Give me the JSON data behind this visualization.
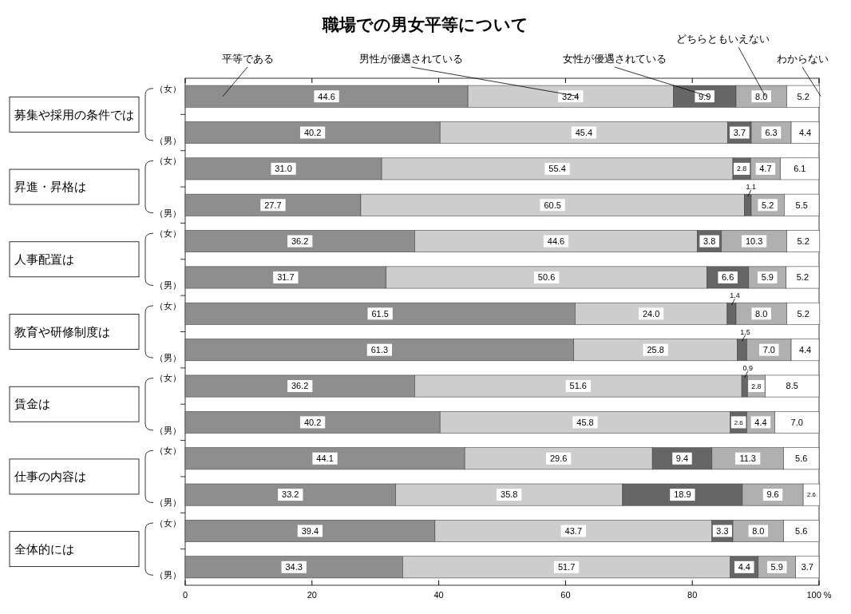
{
  "chart_data": {
    "type": "bar",
    "orientation": "horizontal",
    "stacked": true,
    "title": "職場での男女平等について",
    "categories": [
      "（女）",
      "（男）",
      "（女）",
      "（男）",
      "（女）",
      "（男）",
      "（女）",
      "（男）",
      "（女）",
      "（男）",
      "（女）",
      "（男）",
      "（女）",
      "（男）"
    ],
    "annotations": [
      "募集や採用の条件では",
      "昇進・昇格は",
      "人事配置は",
      "教育や研修制度は",
      "賃金は",
      "仕事の内容は",
      "全体的には"
    ],
    "series": [
      {
        "name": "平等である",
        "color": "#8e8e8e",
        "values": [
          44.6,
          40.2,
          31.0,
          27.7,
          36.2,
          31.7,
          61.5,
          61.3,
          36.2,
          40.2,
          44.1,
          33.2,
          39.4,
          34.3
        ],
        "value_labels": [
          "44.6",
          "40.2",
          "31.0",
          "27.7",
          "36.2",
          "31.7",
          "61.5",
          "61.3",
          "36.2",
          "40.2",
          "44.1",
          "33.2",
          "39.4",
          "34.3"
        ]
      },
      {
        "name": "男性が優遇されている",
        "color": "#cdcdcd",
        "values": [
          32.4,
          45.4,
          55.4,
          60.5,
          44.6,
          50.6,
          24.0,
          25.8,
          51.6,
          45.8,
          29.6,
          35.8,
          43.7,
          51.7
        ],
        "value_labels": [
          "32.4",
          "45.4",
          "55.4",
          "60.5",
          "44.6",
          "50.6",
          "24.0",
          "25.8",
          "51.6",
          "45.8",
          "29.6",
          "35.8",
          "43.7",
          "51.7"
        ]
      },
      {
        "name": "女性が優遇されている",
        "color": "#666666",
        "values": [
          9.9,
          3.7,
          2.8,
          1.1,
          3.8,
          6.6,
          1.4,
          1.5,
          0.9,
          2.6,
          9.4,
          18.9,
          3.3,
          4.4
        ],
        "value_labels": [
          "9.9",
          "3.7",
          "2.8",
          "1.1",
          "3.8",
          "6.6",
          "1.4",
          "1.5",
          "0.9",
          "2.6",
          "9.4",
          "18.9",
          "3.3",
          "4.4"
        ]
      },
      {
        "name": "どちらともいえない",
        "color": "#b0b0b0",
        "values": [
          8.0,
          6.3,
          4.7,
          5.2,
          10.3,
          5.9,
          8.0,
          7.0,
          2.8,
          4.4,
          11.3,
          9.6,
          8.0,
          5.9
        ],
        "value_labels": [
          "8.0",
          "6.3",
          "4.7",
          "5.2",
          "10.3",
          "5.9",
          "8.0",
          "7.0",
          "2.8",
          "4.4",
          "11.3",
          "9.6",
          "8.0",
          "5.9"
        ]
      },
      {
        "name": "わからない",
        "color": "#ffffff",
        "values": [
          5.2,
          4.4,
          6.1,
          5.5,
          5.2,
          5.2,
          5.2,
          4.4,
          8.5,
          7.0,
          5.6,
          2.6,
          5.6,
          3.7
        ],
        "value_labels": [
          "5.2",
          "4.4",
          "6.1",
          "5.5",
          "5.2",
          "5.2",
          "5.2",
          "4.4",
          "8.5",
          "7.0",
          "5.6",
          "2.6",
          "5.6",
          "3.7"
        ]
      }
    ],
    "xlim": [
      0,
      100
    ],
    "xticks": [
      0,
      20,
      40,
      60,
      80,
      {
        "value": 100,
        "label": "100 %"
      }
    ],
    "legend": "top",
    "grid": false
  }
}
